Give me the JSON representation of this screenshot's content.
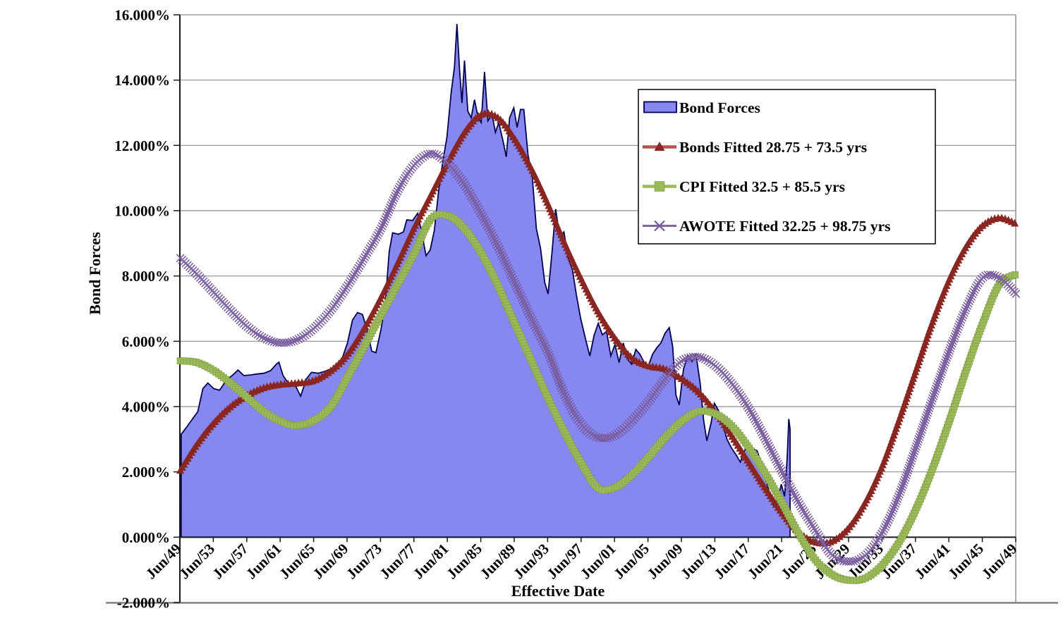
{
  "chart_data": {
    "type": "combo-area-line",
    "title": "",
    "xlabel": "Effective Date",
    "ylabel": "Bond Forces",
    "xlim": [
      1949.45,
      2049.45
    ],
    "ylim": [
      -2,
      16
    ],
    "grid": "horizontal",
    "y_tick_values": [
      16,
      14,
      12,
      10,
      8,
      6,
      4,
      2,
      0,
      -2
    ],
    "y_tick_labels": [
      "16.000%",
      "14.000%",
      "12.000%",
      "10.000%",
      "8.000%",
      "6.000%",
      "4.000%",
      "2.000%",
      "0.000%",
      "-2.000%"
    ],
    "x_tick_labels": [
      "Jun/49",
      "Jun/53",
      "Jun/57",
      "Jun/61",
      "Jun/65",
      "Jun/69",
      "Jun/73",
      "Jun/77",
      "Jun/81",
      "Jun/85",
      "Jun/89",
      "Jun/93",
      "Jun/97",
      "Jun/01",
      "Jun/05",
      "Jun/09",
      "Jun/13",
      "Jun/17",
      "Jun/21",
      "Jun/25",
      "Jun/29",
      "Jun/33",
      "Jun/37",
      "Jun/41",
      "Jun/45",
      "Jun/49"
    ],
    "legend": {
      "position": "inside-top-right"
    },
    "colors": {
      "background": "#FFFFFF",
      "text": "#000000",
      "gridline": "#8C8C8C",
      "chart_border": "#808080",
      "axis": "#1A1A1A",
      "area_fill": "#8787F0",
      "area_border": "#000050",
      "bonds_line": "#B5524D",
      "bonds_marker": "#8A2622",
      "cpi_line": "#9BBB59",
      "cpi_marker": "#9BBB59",
      "cpi_marker_edge": "#7E9A45",
      "awote_line": "#8064A2",
      "awote_marker": "#75589E",
      "legend_border": "#000000",
      "legend_fill": "#FFFFFF"
    },
    "series": [
      {
        "name": "Bond Forces",
        "type": "area",
        "points": [
          [
            1949.6,
            3.15
          ],
          [
            1950.2,
            3.35
          ],
          [
            1950.9,
            3.6
          ],
          [
            1951.6,
            3.85
          ],
          [
            1952.2,
            4.55
          ],
          [
            1952.8,
            4.72
          ],
          [
            1953.5,
            4.55
          ],
          [
            1954.2,
            4.5
          ],
          [
            1955.0,
            4.8
          ],
          [
            1955.7,
            4.95
          ],
          [
            1956.4,
            5.12
          ],
          [
            1957.1,
            4.95
          ],
          [
            1957.9,
            4.97
          ],
          [
            1958.7,
            5.0
          ],
          [
            1959.5,
            5.02
          ],
          [
            1960.3,
            5.1
          ],
          [
            1961.0,
            5.3
          ],
          [
            1961.3,
            5.36
          ],
          [
            1961.8,
            4.95
          ],
          [
            1962.4,
            4.72
          ],
          [
            1963.2,
            4.68
          ],
          [
            1963.9,
            4.32
          ],
          [
            1964.6,
            4.85
          ],
          [
            1965.2,
            5.05
          ],
          [
            1966.0,
            5.02
          ],
          [
            1966.8,
            5.08
          ],
          [
            1967.5,
            5.15
          ],
          [
            1968.2,
            5.28
          ],
          [
            1968.9,
            5.5
          ],
          [
            1969.5,
            5.95
          ],
          [
            1970.1,
            6.65
          ],
          [
            1970.7,
            6.88
          ],
          [
            1971.3,
            6.82
          ],
          [
            1971.9,
            6.3
          ],
          [
            1972.4,
            5.7
          ],
          [
            1972.9,
            5.65
          ],
          [
            1973.5,
            6.35
          ],
          [
            1974.0,
            7.1
          ],
          [
            1974.5,
            8.75
          ],
          [
            1974.9,
            9.32
          ],
          [
            1975.6,
            9.28
          ],
          [
            1976.2,
            9.35
          ],
          [
            1976.6,
            9.72
          ],
          [
            1977.3,
            9.7
          ],
          [
            1977.9,
            9.92
          ],
          [
            1978.4,
            9.3
          ],
          [
            1978.9,
            8.62
          ],
          [
            1979.4,
            8.8
          ],
          [
            1979.9,
            9.4
          ],
          [
            1980.4,
            10.6
          ],
          [
            1980.9,
            11.5
          ],
          [
            1981.4,
            12.25
          ],
          [
            1981.9,
            13.6
          ],
          [
            1982.3,
            14.4
          ],
          [
            1982.6,
            15.72
          ],
          [
            1982.9,
            14.35
          ],
          [
            1983.2,
            13.3
          ],
          [
            1983.5,
            14.6
          ],
          [
            1983.9,
            13.05
          ],
          [
            1984.3,
            12.85
          ],
          [
            1984.7,
            13.4
          ],
          [
            1985.1,
            12.88
          ],
          [
            1985.5,
            12.7
          ],
          [
            1985.9,
            14.25
          ],
          [
            1986.3,
            12.75
          ],
          [
            1986.8,
            12.95
          ],
          [
            1987.2,
            12.4
          ],
          [
            1987.6,
            12.7
          ],
          [
            1988.1,
            12.15
          ],
          [
            1988.5,
            11.65
          ],
          [
            1988.9,
            12.85
          ],
          [
            1989.4,
            13.15
          ],
          [
            1989.8,
            12.55
          ],
          [
            1990.2,
            13.1
          ],
          [
            1990.6,
            13.1
          ],
          [
            1991.1,
            11.7
          ],
          [
            1991.6,
            11.05
          ],
          [
            1992.1,
            9.45
          ],
          [
            1992.6,
            8.85
          ],
          [
            1993.1,
            7.8
          ],
          [
            1993.5,
            7.45
          ],
          [
            1994.0,
            8.8
          ],
          [
            1994.4,
            10.05
          ],
          [
            1994.9,
            9.2
          ],
          [
            1995.4,
            9.35
          ],
          [
            1995.9,
            8.55
          ],
          [
            1996.4,
            8.2
          ],
          [
            1996.9,
            7.4
          ],
          [
            1997.4,
            6.7
          ],
          [
            1998.0,
            6.05
          ],
          [
            1998.5,
            5.55
          ],
          [
            1999.0,
            6.18
          ],
          [
            1999.5,
            6.55
          ],
          [
            2000.0,
            6.2
          ],
          [
            2000.5,
            6.3
          ],
          [
            2001.0,
            5.55
          ],
          [
            2001.5,
            5.9
          ],
          [
            2002.0,
            5.35
          ],
          [
            2002.5,
            5.95
          ],
          [
            2003.0,
            5.45
          ],
          [
            2003.5,
            5.3
          ],
          [
            2004.0,
            5.75
          ],
          [
            2004.5,
            5.6
          ],
          [
            2005.0,
            5.35
          ],
          [
            2005.5,
            5.25
          ],
          [
            2006.0,
            5.6
          ],
          [
            2006.5,
            5.8
          ],
          [
            2007.0,
            5.95
          ],
          [
            2007.5,
            6.25
          ],
          [
            2008.0,
            6.42
          ],
          [
            2008.4,
            5.85
          ],
          [
            2008.8,
            4.35
          ],
          [
            2009.2,
            4.05
          ],
          [
            2009.7,
            5.15
          ],
          [
            2010.2,
            5.55
          ],
          [
            2010.7,
            5.38
          ],
          [
            2011.2,
            5.6
          ],
          [
            2011.7,
            4.7
          ],
          [
            2012.1,
            3.6
          ],
          [
            2012.5,
            2.95
          ],
          [
            2013.0,
            3.5
          ],
          [
            2013.4,
            4.1
          ],
          [
            2013.9,
            3.88
          ],
          [
            2014.4,
            3.45
          ],
          [
            2014.9,
            3.0
          ],
          [
            2015.4,
            2.75
          ],
          [
            2016.0,
            2.52
          ],
          [
            2016.5,
            2.3
          ],
          [
            2017.0,
            2.65
          ],
          [
            2017.5,
            2.82
          ],
          [
            2018.0,
            2.7
          ],
          [
            2018.5,
            2.65
          ],
          [
            2019.0,
            2.28
          ],
          [
            2019.5,
            1.8
          ],
          [
            2020.0,
            1.35
          ],
          [
            2020.5,
            0.95
          ],
          [
            2021.0,
            1.15
          ],
          [
            2021.4,
            1.62
          ],
          [
            2021.8,
            1.25
          ],
          [
            2022.1,
            2.4
          ],
          [
            2022.3,
            3.62
          ],
          [
            2022.45,
            3.3
          ]
        ]
      },
      {
        "name": "Bonds Fitted 28.75 + 73.5 yrs",
        "type": "line",
        "marker": "triangle",
        "start_year": 1949.5,
        "step_years": 2,
        "values": [
          2.05,
          2.85,
          3.5,
          4.0,
          4.35,
          4.58,
          4.68,
          4.72,
          4.8,
          5.1,
          5.6,
          6.4,
          7.35,
          8.4,
          9.5,
          10.5,
          11.5,
          12.4,
          12.95,
          12.85,
          12.2,
          11.3,
          10.2,
          9.0,
          7.9,
          6.9,
          6.1,
          5.5,
          5.25,
          5.15,
          4.85,
          4.45,
          3.85,
          3.1,
          2.3,
          1.5,
          0.75,
          0.15,
          -0.15,
          -0.12,
          0.3,
          1.1,
          2.2,
          3.6,
          5.1,
          6.6,
          7.9,
          8.9,
          9.55,
          9.78,
          9.6
        ]
      },
      {
        "name": "CPI Fitted  32.5 + 85.5 yrs",
        "type": "line",
        "marker": "square",
        "start_year": 1949.5,
        "step_years": 2,
        "values": [
          5.4,
          5.35,
          5.1,
          4.72,
          4.28,
          3.85,
          3.55,
          3.42,
          3.58,
          4.0,
          4.9,
          5.85,
          6.8,
          7.75,
          8.7,
          9.75,
          9.85,
          9.45,
          8.7,
          7.7,
          6.55,
          5.4,
          4.25,
          3.2,
          2.25,
          1.5,
          1.52,
          1.9,
          2.45,
          3.05,
          3.55,
          3.85,
          3.78,
          3.4,
          2.75,
          1.95,
          1.05,
          0.1,
          -0.7,
          -1.15,
          -1.32,
          -1.25,
          -0.85,
          -0.15,
          0.85,
          2.1,
          3.55,
          5.1,
          6.55,
          7.75,
          8.05
        ]
      },
      {
        "name": "AWOTE Fitted  32.25 + 98.75 yrs",
        "type": "line",
        "marker": "x",
        "start_year": 1949.5,
        "step_years": 2,
        "values": [
          8.55,
          8.05,
          7.5,
          6.95,
          6.45,
          6.1,
          5.95,
          6.05,
          6.4,
          6.95,
          7.7,
          8.55,
          9.45,
          10.6,
          11.4,
          11.75,
          11.45,
          10.8,
          9.9,
          8.9,
          7.8,
          6.7,
          5.65,
          4.35,
          3.45,
          3.05,
          3.12,
          3.55,
          4.15,
          4.85,
          5.4,
          5.52,
          5.25,
          4.7,
          3.95,
          3.0,
          2.0,
          1.05,
          0.2,
          -0.55,
          -0.75,
          -0.55,
          0.15,
          1.3,
          2.75,
          4.25,
          5.7,
          7.0,
          7.95,
          7.95,
          7.45
        ]
      }
    ]
  }
}
